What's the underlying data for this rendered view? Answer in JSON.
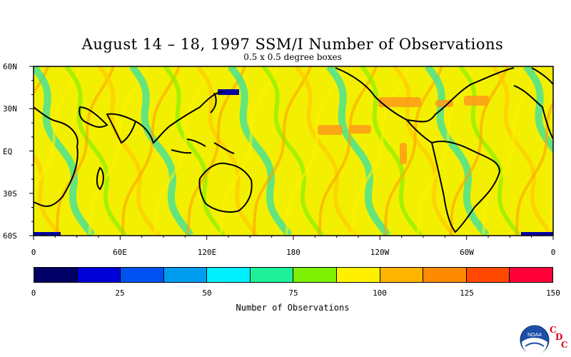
{
  "title": "August 14 – 18, 1997 SSM/I Number of Observations",
  "subtitle": "0.5 x 0.5 degree boxes",
  "lat_labels": [
    "60N",
    "30N",
    "EQ",
    "30S",
    "60S"
  ],
  "lon_labels": [
    "0",
    "60E",
    "120E",
    "180",
    "120W",
    "60W",
    "0"
  ],
  "colorbar": {
    "label": "Number of Observations",
    "ticks": [
      "0",
      "25",
      "50",
      "75",
      "100",
      "125",
      "150"
    ],
    "colors": [
      "#000066",
      "#0000d8",
      "#0052f0",
      "#009cf0",
      "#00f0ff",
      "#1ef09a",
      "#7cf000",
      "#fff000",
      "#ffb400",
      "#ff8a00",
      "#ff4800",
      "#ff0038"
    ]
  },
  "logo": {
    "text": "NOAA",
    "letters": [
      "C",
      "D",
      "C"
    ]
  },
  "map_data": {
    "lon_range": [
      0,
      360
    ],
    "lat_range": [
      -60,
      60
    ],
    "dominant_value_range": [
      75,
      100
    ],
    "features": [
      {
        "name": "North Pacific high-count patch",
        "value_range": [
          110,
          125
        ]
      },
      {
        "name": "North Atlantic high-count patch",
        "value_range": [
          110,
          125
        ]
      },
      {
        "name": "Central Pacific high-count patch",
        "value_range": [
          110,
          125
        ]
      }
    ]
  }
}
